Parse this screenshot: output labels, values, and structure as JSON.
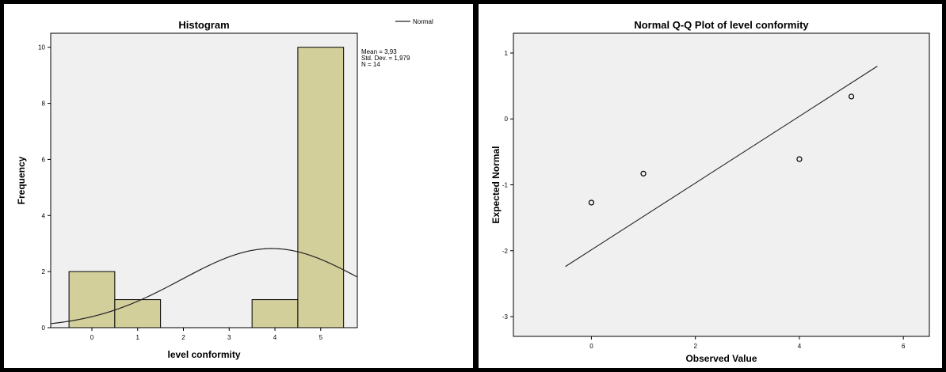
{
  "chart_data": [
    {
      "type": "bar",
      "title": "Histogram",
      "xlabel": "level conformity",
      "ylabel": "Frequency",
      "xlim": [
        -0.9,
        5.8
      ],
      "ylim": [
        0,
        10.5
      ],
      "x_ticks": [
        0,
        1,
        2,
        3,
        4,
        5
      ],
      "y_ticks": [
        0,
        2,
        4,
        6,
        8,
        10
      ],
      "bins": [
        {
          "x0": -0.5,
          "x1": 0.5,
          "value": 2
        },
        {
          "x0": 0.5,
          "x1": 1.5,
          "value": 1
        },
        {
          "x0": 1.5,
          "x1": 2.5,
          "value": 0
        },
        {
          "x0": 2.5,
          "x1": 3.5,
          "value": 0
        },
        {
          "x0": 3.5,
          "x1": 4.5,
          "value": 1
        },
        {
          "x0": 4.5,
          "x1": 5.5,
          "value": 10
        }
      ],
      "bar_color": "#d3cf9b",
      "plot_bg": "#f0f0f0",
      "normal_curve": {
        "mean": 3.93,
        "sd": 1.979,
        "n": 14,
        "bin_width": 1
      },
      "legend": [
        {
          "name": "Normal",
          "style": "line"
        }
      ],
      "legend_position": "top-right",
      "stats": [
        "Mean = 3,93",
        "Std. Dev. = 1,979",
        "N = 14"
      ],
      "grid": false
    },
    {
      "type": "scatter",
      "title": "Normal Q-Q Plot of level conformity",
      "xlabel": "Observed Value",
      "ylabel": "Expected Normal",
      "xlim": [
        -1.5,
        6.5
      ],
      "ylim": [
        -3.3,
        1.3
      ],
      "x_ticks": [
        0,
        2,
        4,
        6
      ],
      "y_ticks": [
        -3,
        -2,
        -1,
        0,
        1
      ],
      "points": [
        {
          "x": 0,
          "y": -1.27
        },
        {
          "x": 1,
          "y": -0.83
        },
        {
          "x": 4,
          "y": -0.61
        },
        {
          "x": 5,
          "y": 0.34
        }
      ],
      "reference_line": {
        "x": [
          -0.5,
          5.5
        ],
        "y": [
          -2.24,
          0.8
        ]
      },
      "plot_bg": "#f0f0f0",
      "grid": false
    }
  ]
}
